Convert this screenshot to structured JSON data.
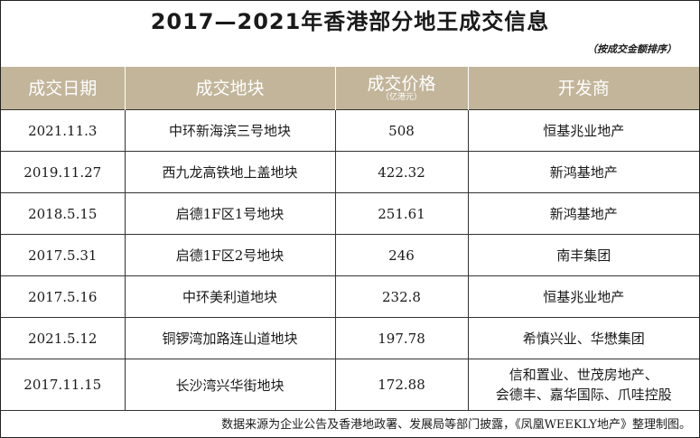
{
  "title": "2017—2021年香港部分地王成交信息",
  "sort_note": "（按成交金额排序）",
  "columns": {
    "date": "成交日期",
    "plot": "成交地块",
    "price": "成交价格",
    "price_unit": "（亿港元）",
    "developer": "开发商"
  },
  "rows": [
    {
      "date": "2021.11.3",
      "plot": "中环新海滨三号地块",
      "price": "508",
      "developer": [
        "恒基兆业地产"
      ]
    },
    {
      "date": "2019.11.27",
      "plot": "西九龙高铁地上盖地块",
      "price": "422.32",
      "developer": [
        "新鸿基地产"
      ]
    },
    {
      "date": "2018.5.15",
      "plot": "启德1F区1号地块",
      "price": "251.61",
      "developer": [
        "新鸿基地产"
      ]
    },
    {
      "date": "2017.5.31",
      "plot": "启德1F区2号地块",
      "price": "246",
      "developer": [
        "南丰集团"
      ]
    },
    {
      "date": "2017.5.16",
      "plot": "中环美利道地块",
      "price": "232.8",
      "developer": [
        "恒基兆业地产"
      ]
    },
    {
      "date": "2021.5.12",
      "plot": "铜锣湾加路连山道地块",
      "price": "197.78",
      "developer": [
        "希慎兴业、华懋集团"
      ]
    },
    {
      "date": "2017.11.15",
      "plot": "长沙湾兴华街地块",
      "price": "172.88",
      "developer": [
        "信和置业、世茂房地产、",
        "会德丰、嘉华国际、爪哇控股"
      ]
    }
  ],
  "footer": "数据来源为企业公告及香港地政署、发展局等部门披露，《凤凰WEEKLY地产》整理制图。"
}
